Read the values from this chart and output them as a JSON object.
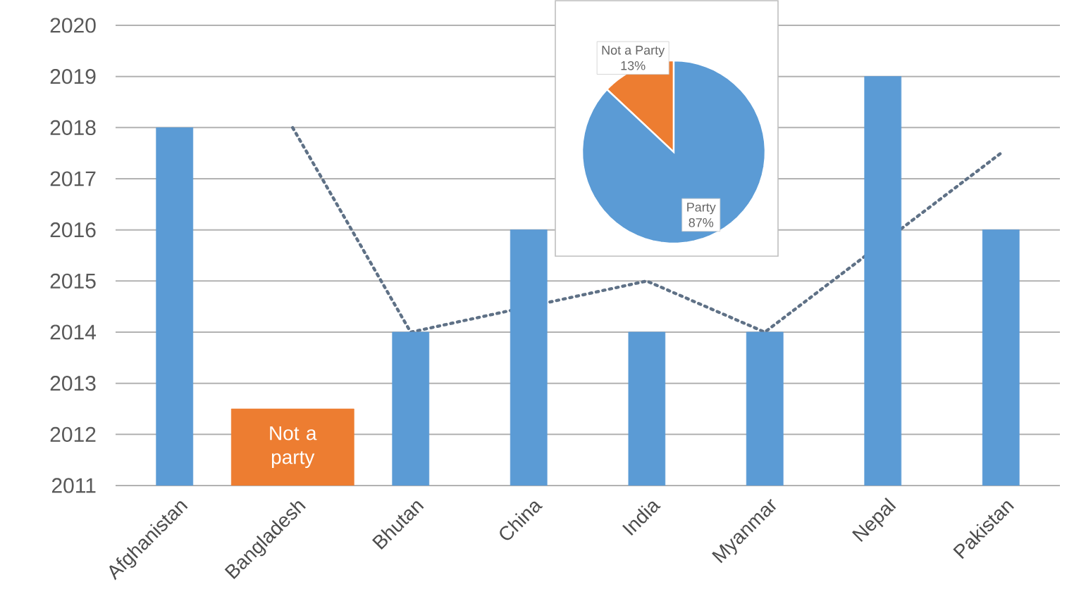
{
  "chart_data": [
    {
      "type": "bar",
      "categories": [
        "Afghanistan",
        "Bangladesh",
        "Bhutan",
        "China",
        "India",
        "Myanmar",
        "Nepal",
        "Pakistan"
      ],
      "series": [
        {
          "type": "line",
          "color": "#5f7186",
          "line_style": "dotted",
          "values": [
            null,
            2018,
            2014,
            null,
            2015,
            2014,
            null,
            2017.5
          ]
        },
        {
          "type": "bar",
          "colors": [
            "#5b9bd5",
            "#ed7d31",
            "#5b9bd5",
            "#5b9bd5",
            "#5b9bd5",
            "#5b9bd5",
            "#5b9bd5",
            "#5b9bd5"
          ],
          "values": [
            2018,
            2012.5,
            2014,
            2016,
            2014,
            2014,
            2019,
            2016
          ],
          "value_labels": [
            null,
            "Not a party",
            null,
            null,
            null,
            null,
            null,
            null
          ]
        }
      ],
      "ylim": [
        2011,
        2020
      ],
      "yticks": [
        2011,
        2012,
        2013,
        2014,
        2015,
        2016,
        2017,
        2018,
        2019,
        2020
      ],
      "grid": "y"
    },
    {
      "type": "pie",
      "categories": [
        "Not a Party",
        "Party"
      ],
      "values": [
        13,
        87
      ],
      "colors": [
        "#ed7d31",
        "#5b9bd5"
      ],
      "value_labels": [
        "13%",
        "87%"
      ]
    }
  ]
}
